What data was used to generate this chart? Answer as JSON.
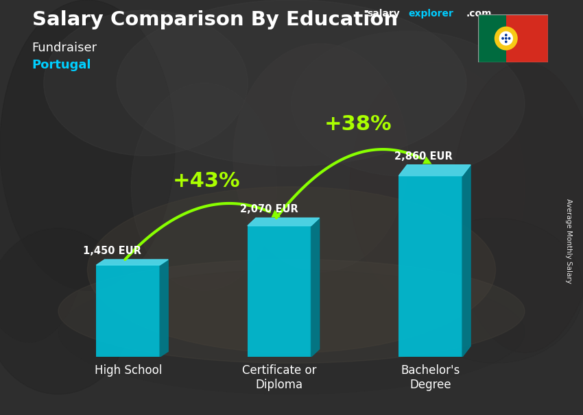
{
  "title_salary": "Salary Comparison By Education",
  "subtitle_job": "Fundraiser",
  "subtitle_country": "Portugal",
  "ylabel": "Average Monthly Salary",
  "website_salary": "salary",
  "website_explorer": "explorer",
  "website_com": ".com",
  "categories": [
    "High School",
    "Certificate or\nDiploma",
    "Bachelor's\nDegree"
  ],
  "values": [
    1450,
    2070,
    2860
  ],
  "value_labels": [
    "1,450 EUR",
    "2,070 EUR",
    "2,860 EUR"
  ],
  "pct_labels": [
    "+43%",
    "+38%"
  ],
  "bar_face_color": "#00bcd4",
  "bar_top_color": "#4dd9ec",
  "bar_side_color": "#007a8a",
  "arrow_color": "#88ff00",
  "pct_color": "#aaff00",
  "title_color": "#ffffff",
  "label_color": "#ffffff",
  "country_color": "#00cfff",
  "bar_width": 0.42,
  "ylim": [
    0,
    3800
  ],
  "bg_color": "#3d3d3d",
  "flag_green": "#006b3f",
  "flag_red": "#d52b1e",
  "flag_yellow": "#f7c915"
}
